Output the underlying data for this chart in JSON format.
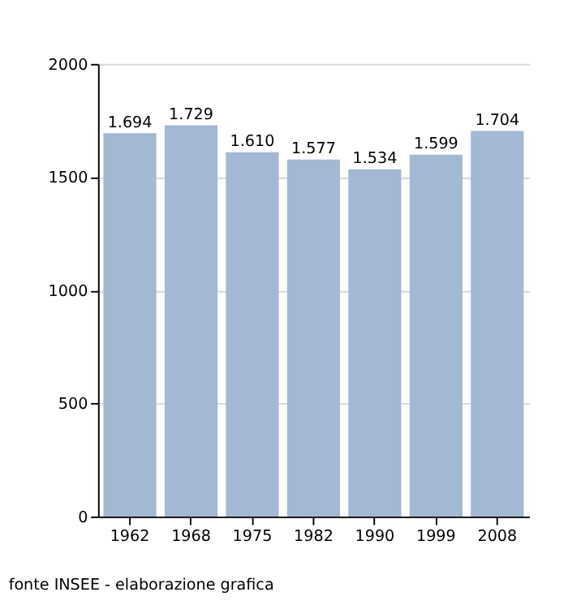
{
  "chart_data": {
    "type": "bar",
    "categories": [
      "1962",
      "1968",
      "1975",
      "1982",
      "1990",
      "1999",
      "2008"
    ],
    "values": [
      1694,
      1729,
      1610,
      1577,
      1534,
      1599,
      1704
    ],
    "value_labels": [
      "1.694",
      "1.729",
      "1.610",
      "1.577",
      "1.534",
      "1.599",
      "1.704"
    ],
    "color": "#a3b8d3",
    "ylim": [
      0,
      2000
    ],
    "yticks": [
      0,
      500,
      1000,
      1500,
      2000
    ],
    "grid": "y",
    "annotations": [
      "fonte INSEE - elaborazione grafica"
    ]
  }
}
